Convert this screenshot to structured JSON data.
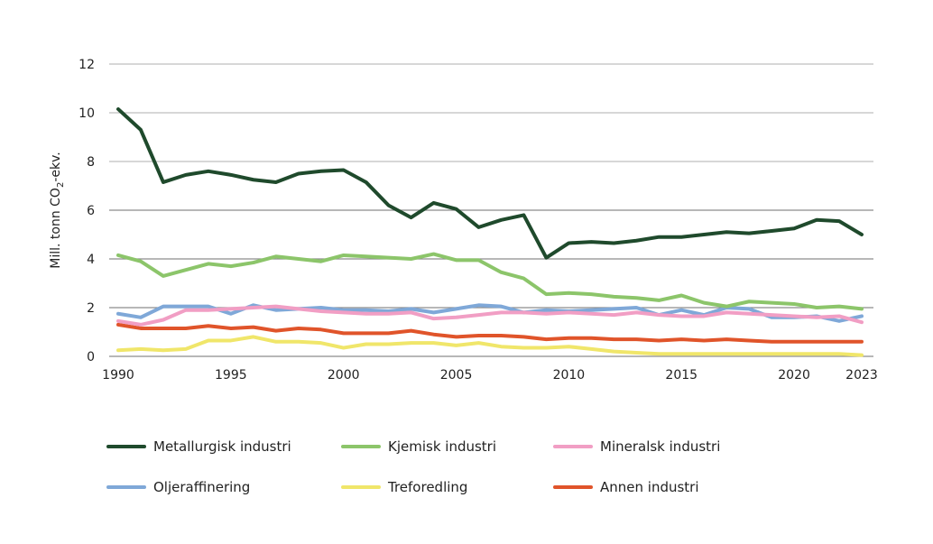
{
  "chart_data": {
    "type": "line",
    "title": "",
    "xlabel": "",
    "ylabel": "Mill. tonn CO2-ekv.",
    "ylabel_parts": {
      "before": "Mill. tonn CO",
      "sub": "2",
      "after": "-ekv."
    },
    "ylim": [
      0,
      12
    ],
    "yticks": [
      0,
      2,
      4,
      6,
      8,
      10,
      12
    ],
    "xlim": [
      1990,
      2023
    ],
    "xticks": [
      1990,
      1995,
      2000,
      2005,
      2010,
      2015,
      2020,
      2023
    ],
    "grid": "horizontal",
    "legend_placement": "bottom",
    "x": [
      1990,
      1991,
      1992,
      1993,
      1994,
      1995,
      1996,
      1997,
      1998,
      1999,
      2000,
      2001,
      2002,
      2003,
      2004,
      2005,
      2006,
      2007,
      2008,
      2009,
      2010,
      2011,
      2012,
      2013,
      2014,
      2015,
      2016,
      2017,
      2018,
      2019,
      2020,
      2021,
      2022,
      2023
    ],
    "series": [
      {
        "name": "Metallurgisk industri",
        "color": "#1f4a2c",
        "values": [
          10.15,
          9.3,
          7.15,
          7.45,
          7.6,
          7.45,
          7.25,
          7.15,
          7.5,
          7.6,
          7.65,
          7.15,
          6.2,
          5.7,
          6.3,
          6.05,
          5.3,
          5.6,
          5.8,
          4.05,
          4.65,
          4.7,
          4.65,
          4.75,
          4.9,
          4.9,
          5.0,
          5.1,
          5.05,
          5.15,
          5.25,
          5.6,
          5.55,
          5.0
        ]
      },
      {
        "name": "Kjemisk industri",
        "color": "#8cc56a",
        "values": [
          4.15,
          3.9,
          3.3,
          3.55,
          3.8,
          3.7,
          3.85,
          4.1,
          4.0,
          3.9,
          4.15,
          4.1,
          4.05,
          4.0,
          4.2,
          3.95,
          3.95,
          3.45,
          3.2,
          2.55,
          2.6,
          2.55,
          2.45,
          2.4,
          2.3,
          2.5,
          2.2,
          2.05,
          2.25,
          2.2,
          2.15,
          2.0,
          2.05,
          1.95
        ]
      },
      {
        "name": "Mineralsk industri",
        "color": "#f19ec4",
        "values": [
          1.45,
          1.3,
          1.5,
          1.9,
          1.9,
          1.95,
          2.0,
          2.05,
          1.95,
          1.85,
          1.8,
          1.75,
          1.75,
          1.8,
          1.55,
          1.6,
          1.7,
          1.8,
          1.8,
          1.75,
          1.8,
          1.75,
          1.7,
          1.8,
          1.7,
          1.65,
          1.65,
          1.8,
          1.75,
          1.7,
          1.65,
          1.6,
          1.65,
          1.4
        ]
      },
      {
        "name": "Oljeraffinering",
        "color": "#7fa8d8",
        "values": [
          1.75,
          1.6,
          2.05,
          2.05,
          2.05,
          1.75,
          2.1,
          1.9,
          1.95,
          2.0,
          1.9,
          1.9,
          1.85,
          1.95,
          1.8,
          1.95,
          2.1,
          2.05,
          1.8,
          1.9,
          1.85,
          1.9,
          1.95,
          2.0,
          1.7,
          1.9,
          1.7,
          2.0,
          1.95,
          1.6,
          1.6,
          1.65,
          1.45,
          1.65
        ]
      },
      {
        "name": "Treforedling",
        "color": "#f0e66a",
        "values": [
          0.25,
          0.3,
          0.25,
          0.3,
          0.65,
          0.65,
          0.8,
          0.6,
          0.6,
          0.55,
          0.35,
          0.5,
          0.5,
          0.55,
          0.55,
          0.45,
          0.55,
          0.4,
          0.35,
          0.35,
          0.4,
          0.3,
          0.2,
          0.15,
          0.1,
          0.1,
          0.1,
          0.1,
          0.1,
          0.1,
          0.1,
          0.1,
          0.1,
          0.05
        ]
      },
      {
        "name": "Annen industri",
        "color": "#e0542a",
        "values": [
          1.3,
          1.15,
          1.15,
          1.15,
          1.25,
          1.15,
          1.2,
          1.05,
          1.15,
          1.1,
          0.95,
          0.95,
          0.95,
          1.05,
          0.9,
          0.8,
          0.85,
          0.85,
          0.8,
          0.7,
          0.75,
          0.75,
          0.7,
          0.7,
          0.65,
          0.7,
          0.65,
          0.7,
          0.65,
          0.6,
          0.6,
          0.6,
          0.6,
          0.6
        ]
      }
    ]
  }
}
